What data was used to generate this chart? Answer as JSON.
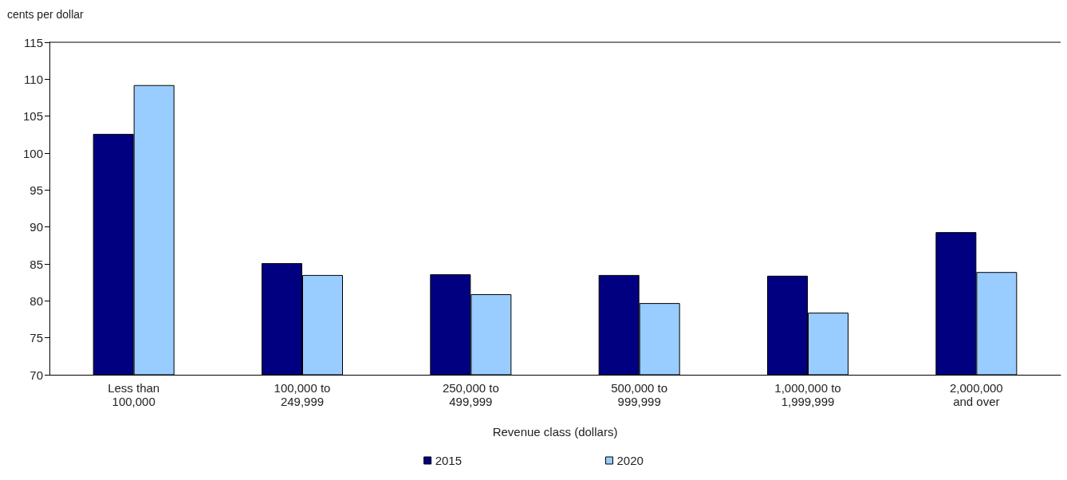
{
  "chart_data": {
    "type": "bar",
    "ylabel": "cents per dollar",
    "xlabel": "Revenue class (dollars)",
    "categories": [
      "Less than\n100,000",
      "100,000 to\n249,999",
      "250,000 to\n499,999",
      "500,000 to\n999,999",
      "1,000,000 to\n1,999,999",
      "2,000,000\nand over"
    ],
    "series": [
      {
        "name": "2015",
        "color": "#000080",
        "values": [
          102.6,
          85.1,
          83.6,
          83.5,
          83.4,
          89.3
        ]
      },
      {
        "name": "2020",
        "color": "#99ccff",
        "values": [
          109.2,
          83.5,
          80.9,
          79.7,
          78.4,
          83.9
        ]
      }
    ],
    "ylim": [
      70,
      115
    ],
    "yticks": [
      70,
      75,
      80,
      85,
      90,
      95,
      100,
      105,
      110,
      115
    ],
    "grid": false,
    "legend": "bottom"
  }
}
